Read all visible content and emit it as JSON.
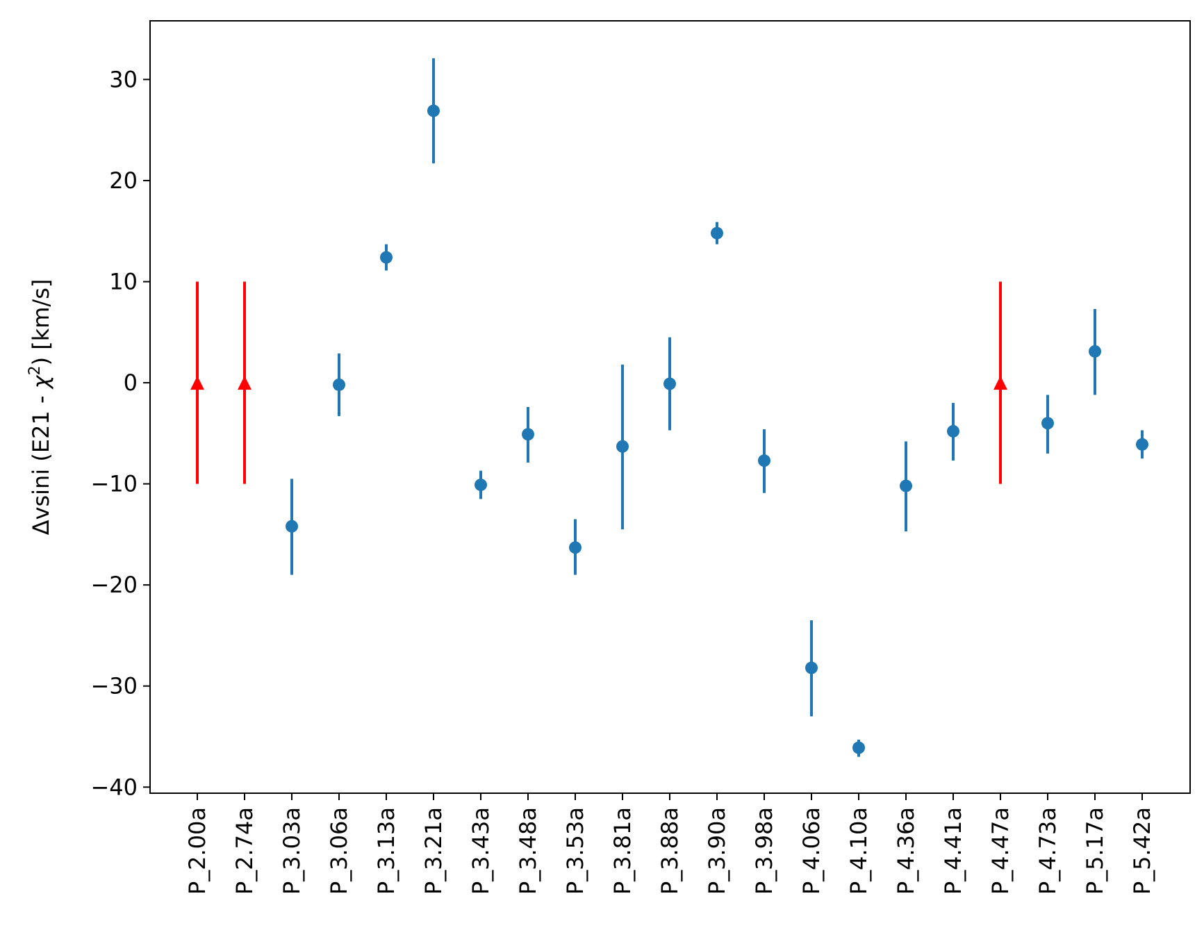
{
  "chart_data": {
    "type": "scatter",
    "ylabel_main": "Δvsini (E21 - ",
    "ylabel_chi": "χ",
    "ylabel_sup": "2",
    "ylabel_tail": ") [km/s]",
    "ylim": [
      -40.6,
      35.8
    ],
    "yticks": [
      30,
      20,
      10,
      0,
      -10,
      -20,
      -30,
      -40
    ],
    "ytick_labels": [
      "30",
      "20",
      "10",
      "0",
      "−10",
      "−20",
      "−30",
      "−40"
    ],
    "categories": [
      "P_2.00a",
      "P_2.74a",
      "P_3.03a",
      "P_3.06a",
      "P_3.13a",
      "P_3.21a",
      "P_3.43a",
      "P_3.48a",
      "P_3.53a",
      "P_3.81a",
      "P_3.88a",
      "P_3.90a",
      "P_3.98a",
      "P_4.06a",
      "P_4.10a",
      "P_4.36a",
      "P_4.41a",
      "P_4.47a",
      "P_4.73a",
      "P_5.17a",
      "P_5.42a"
    ],
    "grid": false,
    "colors": {
      "measured": "#1f77b4",
      "lower_limit": "#ff0000"
    },
    "series": [
      {
        "kind": "measured",
        "points": [
          {
            "category": "P_3.03a",
            "y": -14.2,
            "ylow": -19.0,
            "yhigh": -9.5
          },
          {
            "category": "P_3.06a",
            "y": -0.2,
            "ylow": -3.3,
            "yhigh": 2.9
          },
          {
            "category": "P_3.13a",
            "y": 12.4,
            "ylow": 11.1,
            "yhigh": 13.7
          },
          {
            "category": "P_3.21a",
            "y": 26.9,
            "ylow": 21.7,
            "yhigh": 32.1
          },
          {
            "category": "P_3.43a",
            "y": -10.1,
            "ylow": -11.5,
            "yhigh": -8.7
          },
          {
            "category": "P_3.48a",
            "y": -5.1,
            "ylow": -7.9,
            "yhigh": -2.4
          },
          {
            "category": "P_3.53a",
            "y": -16.3,
            "ylow": -19.0,
            "yhigh": -13.5
          },
          {
            "category": "P_3.81a",
            "y": -6.3,
            "ylow": -14.5,
            "yhigh": 1.8
          },
          {
            "category": "P_3.88a",
            "y": -0.1,
            "ylow": -4.7,
            "yhigh": 4.5
          },
          {
            "category": "P_3.90a",
            "y": 14.8,
            "ylow": 13.7,
            "yhigh": 15.9
          },
          {
            "category": "P_3.98a",
            "y": -7.7,
            "ylow": -10.9,
            "yhigh": -4.6
          },
          {
            "category": "P_4.06a",
            "y": -28.2,
            "ylow": -33.0,
            "yhigh": -23.5
          },
          {
            "category": "P_4.10a",
            "y": -36.1,
            "ylow": -37.0,
            "yhigh": -35.3
          },
          {
            "category": "P_4.36a",
            "y": -10.2,
            "ylow": -14.7,
            "yhigh": -5.8
          },
          {
            "category": "P_4.41a",
            "y": -4.8,
            "ylow": -7.7,
            "yhigh": -2.0
          },
          {
            "category": "P_4.73a",
            "y": -4.0,
            "ylow": -7.0,
            "yhigh": -1.2
          },
          {
            "category": "P_5.17a",
            "y": 3.1,
            "ylow": -1.2,
            "yhigh": 7.3
          },
          {
            "category": "P_5.42a",
            "y": -6.1,
            "ylow": -7.5,
            "yhigh": -4.7
          }
        ]
      },
      {
        "kind": "lower_limit",
        "points": [
          {
            "category": "P_2.00a",
            "y": 0,
            "ylow": -10,
            "yhigh": 10
          },
          {
            "category": "P_2.74a",
            "y": 0,
            "ylow": -10,
            "yhigh": 10
          },
          {
            "category": "P_4.47a",
            "y": 0,
            "ylow": -10,
            "yhigh": 10
          }
        ]
      }
    ]
  }
}
